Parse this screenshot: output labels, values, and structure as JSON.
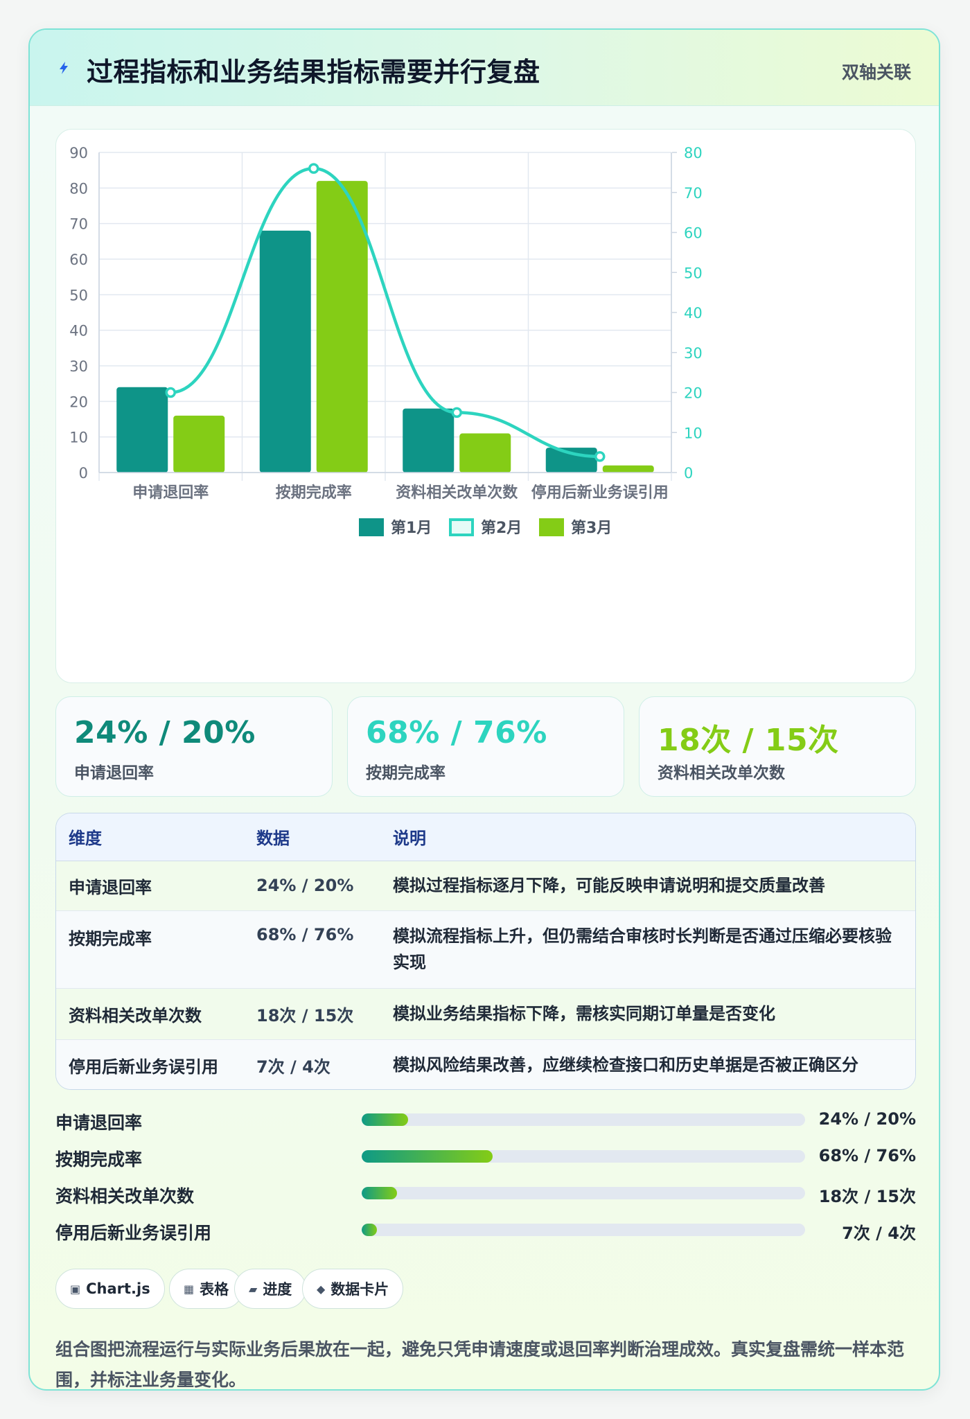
{
  "header": {
    "title": "过程指标和业务结果指标需要并行复盘",
    "badge": "双轴关联"
  },
  "chart_data": {
    "type": "bar",
    "categories": [
      "申请退回率",
      "按期完成率",
      "资料相关改单次数",
      "停用后新业务误引用"
    ],
    "series": [
      {
        "name": "第1月",
        "type": "bar",
        "axis": "left",
        "color": "#0e9488",
        "values": [
          24,
          68,
          18,
          7
        ]
      },
      {
        "name": "第2月",
        "type": "line",
        "axis": "right",
        "color": "#2dd4bf",
        "values": [
          20,
          76,
          15,
          4
        ]
      },
      {
        "name": "第3月",
        "type": "bar",
        "axis": "left",
        "color": "#84cc16",
        "values": [
          16,
          82,
          11,
          2
        ]
      }
    ],
    "y_left": {
      "min": 0,
      "max": 90,
      "ticks": [
        "0",
        "10",
        "20",
        "30",
        "40",
        "50",
        "60",
        "70",
        "80",
        "90"
      ]
    },
    "y_right": {
      "min": 0,
      "max": 80,
      "ticks": [
        "0",
        "10",
        "20",
        "30",
        "40",
        "50",
        "60",
        "70",
        "80"
      ]
    },
    "grid": true,
    "legend": "bottom"
  },
  "kpis": [
    {
      "value": "24% / 20%",
      "label": "申请退回率",
      "color": "#0f8a7a"
    },
    {
      "value": "68% / 76%",
      "label": "按期完成率",
      "color": "#2dd4bf"
    },
    {
      "value": "18次 / 15次",
      "label": "资料相关改单次数",
      "color": "#84cc16"
    }
  ],
  "table": {
    "headers": [
      "维度",
      "数据",
      "说明"
    ],
    "rows": [
      {
        "dim": "申请退回率",
        "data": "24% / 20%",
        "note": "模拟过程指标逐月下降，可能反映申请说明和提交质量改善"
      },
      {
        "dim": "按期完成率",
        "data": "68% / 76%",
        "note": "模拟流程指标上升，但仍需结合审核时长判断是否通过压缩必要核验实现"
      },
      {
        "dim": "资料相关改单次数",
        "data": "18次 / 15次",
        "note": "模拟业务结果指标下降，需核实同期订单量是否变化"
      },
      {
        "dim": "停用后新业务误引用",
        "data": "7次 / 4次",
        "note": "模拟风险结果改善，应继续检查接口和历史单据是否被正确区分"
      }
    ]
  },
  "progress": [
    {
      "label": "申请退回率",
      "value": "24% / 20%",
      "fill": 0.105
    },
    {
      "label": "按期完成率",
      "value": "68% / 76%",
      "fill": 0.295
    },
    {
      "label": "资料相关改单次数",
      "value": "18次 / 15次",
      "fill": 0.08
    },
    {
      "label": "停用后新业务误引用",
      "value": "7次 / 4次",
      "fill": 0.035
    }
  ],
  "tags": [
    {
      "icon": "▣",
      "label": "Chart.js"
    },
    {
      "icon": "▦",
      "label": "表格"
    },
    {
      "icon": "▰",
      "label": "进度"
    },
    {
      "icon": "◆",
      "label": "数据卡片"
    }
  ],
  "footnote": "组合图把流程运行与实际业务后果放在一起，避免只凭申请速度或退回率判断治理成效。真实复盘需统一样本范围，并标注业务量变化。"
}
